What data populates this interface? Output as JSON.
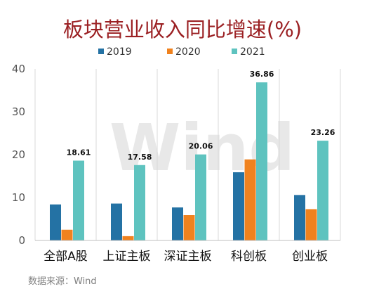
{
  "chart_data": {
    "type": "bar",
    "title": "板块营业收入同比增速(%)",
    "categories": [
      "全部A股",
      "上证主板",
      "深证主板",
      "科创板",
      "创业板"
    ],
    "series": [
      {
        "name": "2019",
        "color": "#2472a4",
        "values": [
          8.4,
          8.6,
          7.7,
          15.9,
          10.6
        ]
      },
      {
        "name": "2020",
        "color": "#f0821e",
        "values": [
          2.5,
          1.0,
          5.9,
          18.9,
          7.3
        ]
      },
      {
        "name": "2021",
        "color": "#5ec3bf",
        "values": [
          18.61,
          17.58,
          20.06,
          36.86,
          23.26
        ]
      }
    ],
    "data_labels": {
      "series": "2021",
      "labels": [
        "18.61",
        "17.58",
        "20.06",
        "36.86",
        "23.26"
      ]
    },
    "ylim": [
      0,
      40
    ],
    "yticks": [
      0,
      10,
      20,
      30,
      40
    ],
    "grid": "vertical separators between categories",
    "legend": "top-center",
    "xlabel": "",
    "ylabel": ""
  },
  "source_text": "数据来源：Wind",
  "watermark": "Wind"
}
